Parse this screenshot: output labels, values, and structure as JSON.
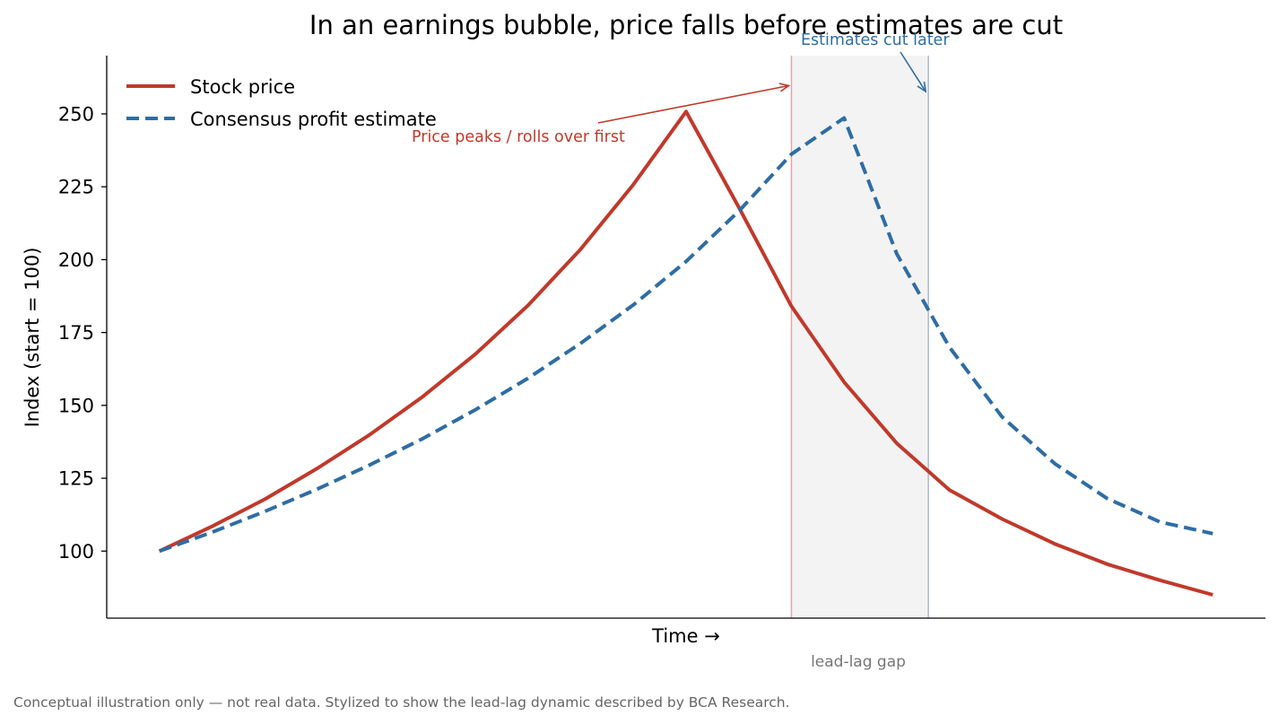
{
  "chart_data": {
    "type": "line",
    "title": "In an earnings bubble, price falls before estimates are cut",
    "xlabel": "Time →",
    "ylabel": "Index (start = 100)",
    "xlim": [
      -0.05,
      1.05
    ],
    "ylim": [
      77,
      270
    ],
    "yticks": [
      100,
      125,
      150,
      175,
      200,
      225,
      250
    ],
    "show_x_ticks": false,
    "grid": false,
    "legend_position": "top-left",
    "series": [
      {
        "name": "Stock price",
        "color": "#c0392b",
        "style": "solid",
        "x": [
          0,
          0.05,
          0.1,
          0.15,
          0.2,
          0.25,
          0.3,
          0.35,
          0.4,
          0.45,
          0.5,
          0.55,
          0.6,
          0.65,
          0.7,
          0.75,
          0.8,
          0.85,
          0.9,
          0.95,
          1.0
        ],
        "y": [
          100,
          108.5,
          117.8,
          128.4,
          140.0,
          153.0,
          167.6,
          184.3,
          203.6,
          225.8,
          250.8,
          218.0,
          184.0,
          158.0,
          137.0,
          121.0,
          111.0,
          102.5,
          95.5,
          90.0,
          85.0
        ]
      },
      {
        "name": "Consensus profit estimate",
        "color": "#2e6da4",
        "style": "dashed",
        "x": [
          0,
          0.05,
          0.1,
          0.15,
          0.2,
          0.25,
          0.3,
          0.35,
          0.4,
          0.45,
          0.5,
          0.55,
          0.6,
          0.65,
          0.7,
          0.75,
          0.8,
          0.85,
          0.9,
          0.95,
          1.0
        ],
        "y": [
          100,
          106.5,
          113.6,
          121.3,
          129.6,
          138.6,
          148.5,
          159.3,
          171.3,
          184.5,
          199.4,
          216.6,
          236.2,
          248.6,
          202.0,
          170.0,
          146.0,
          130.0,
          118.0,
          110.0,
          106.0
        ]
      }
    ],
    "highlight": {
      "x_start": 0.6,
      "x_end": 0.73,
      "label": "lead-lag gap"
    },
    "annotations": [
      {
        "text": "Price peaks / rolls over first",
        "color": "#c0392b",
        "target": [
          0.6,
          260
        ]
      },
      {
        "text": "Estimates cut later",
        "color": "#2e6da4",
        "target": [
          0.73,
          258
        ]
      }
    ],
    "footnote": "Conceptual illustration only — not real data. Stylized to show the lead-lag dynamic described by BCA Research."
  }
}
